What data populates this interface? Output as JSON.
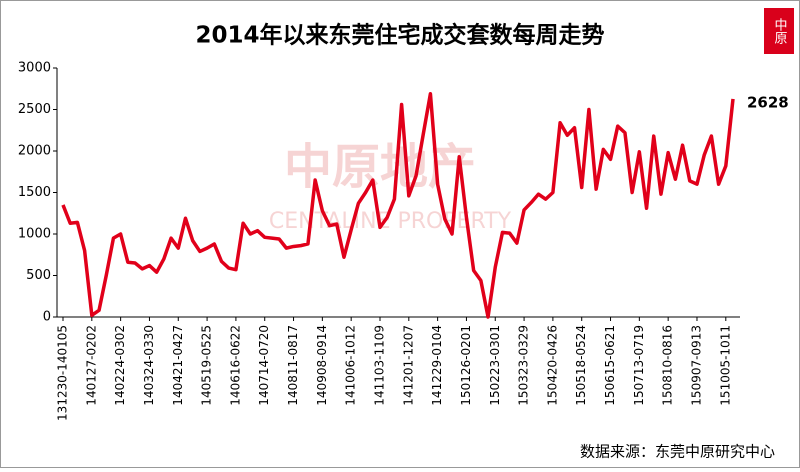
{
  "chart_data": {
    "type": "line",
    "title": "2014年以来东莞住宅成交套数每周走势",
    "logo": "中原",
    "watermark": "中原地产",
    "watermark_en": "CENTALINE PROPERTY",
    "source": "数据来源：东莞中原研究中心",
    "categories": [
      "131230-140105",
      null,
      null,
      null,
      "140127-0202",
      null,
      null,
      null,
      "140224-0302",
      null,
      null,
      null,
      "140324-0330",
      null,
      null,
      null,
      "140421-0427",
      null,
      null,
      null,
      "140519-0525",
      null,
      null,
      null,
      "140616-0622",
      null,
      null,
      null,
      "140714-0720",
      null,
      null,
      null,
      "140811-0817",
      null,
      null,
      null,
      "140908-0914",
      null,
      null,
      null,
      "141006-1012",
      null,
      null,
      null,
      "141103-1109",
      null,
      null,
      null,
      "141201-1207",
      null,
      null,
      null,
      "141229-0104",
      null,
      null,
      null,
      "150126-0201",
      null,
      null,
      null,
      "150223-0301",
      null,
      null,
      null,
      "150323-0329",
      null,
      null,
      null,
      "150420-0426",
      null,
      null,
      null,
      "150518-0524",
      null,
      null,
      null,
      "150615-0621",
      null,
      null,
      null,
      "150713-0719",
      null,
      null,
      null,
      "150810-0816",
      null,
      null,
      null,
      "150907-0913",
      null,
      null,
      null,
      "151005-1011",
      null
    ],
    "series": [
      {
        "color": "#e1001a",
        "values": [
          1350,
          1130,
          1140,
          800,
          20,
          80,
          500,
          950,
          1000,
          660,
          650,
          580,
          620,
          540,
          700,
          950,
          830,
          1190,
          920,
          790,
          830,
          880,
          670,
          590,
          570,
          1130,
          1000,
          1040,
          960,
          950,
          940,
          830,
          850,
          860,
          880,
          1650,
          1280,
          1100,
          1120,
          720,
          1050,
          1370,
          1500,
          1650,
          1080,
          1200,
          1420,
          2560,
          1460,
          1700,
          2200,
          2690,
          1600,
          1180,
          1000,
          1930,
          1200,
          560,
          440,
          0,
          600,
          1020,
          1010,
          890,
          1290,
          1380,
          1480,
          1420,
          1500,
          2340,
          2190,
          2280,
          1560,
          2500,
          1540,
          2020,
          1900,
          2300,
          2220,
          1500,
          1990,
          1310,
          2180,
          1480,
          1980,
          1660,
          2070,
          1640,
          1600,
          1950,
          2180,
          1600,
          1820,
          2628
        ]
      }
    ],
    "ylim": [
      0,
      3000
    ],
    "yticks": [
      0,
      500,
      1000,
      1500,
      2000,
      2500,
      3000
    ],
    "labeled_points": [
      93
    ]
  }
}
